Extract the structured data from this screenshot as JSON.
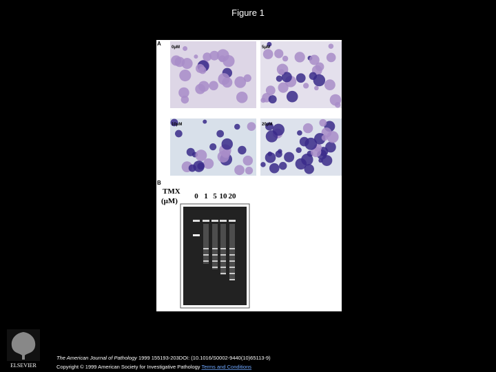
{
  "slide": {
    "title": "Figure 1"
  },
  "figure": {
    "panel_a": {
      "label": "A",
      "images": [
        "0μM",
        "5μM",
        "10μM",
        "20μM"
      ]
    },
    "panel_b": {
      "label": "B",
      "axis_title": "TMX",
      "axis_unit": "(μM)",
      "lanes": [
        "0",
        "1",
        "5",
        "10",
        "20"
      ]
    }
  },
  "footer": {
    "journal": "The American Journal of Pathology",
    "citation": "1999 155193-203DOI: (10.1016/S0002-9440(10)65113-9)",
    "copyright": "Copyright © 1999 American Society for Investigative Pathology",
    "terms": "Terms and Conditions",
    "publisher": "ELSEVIER"
  }
}
